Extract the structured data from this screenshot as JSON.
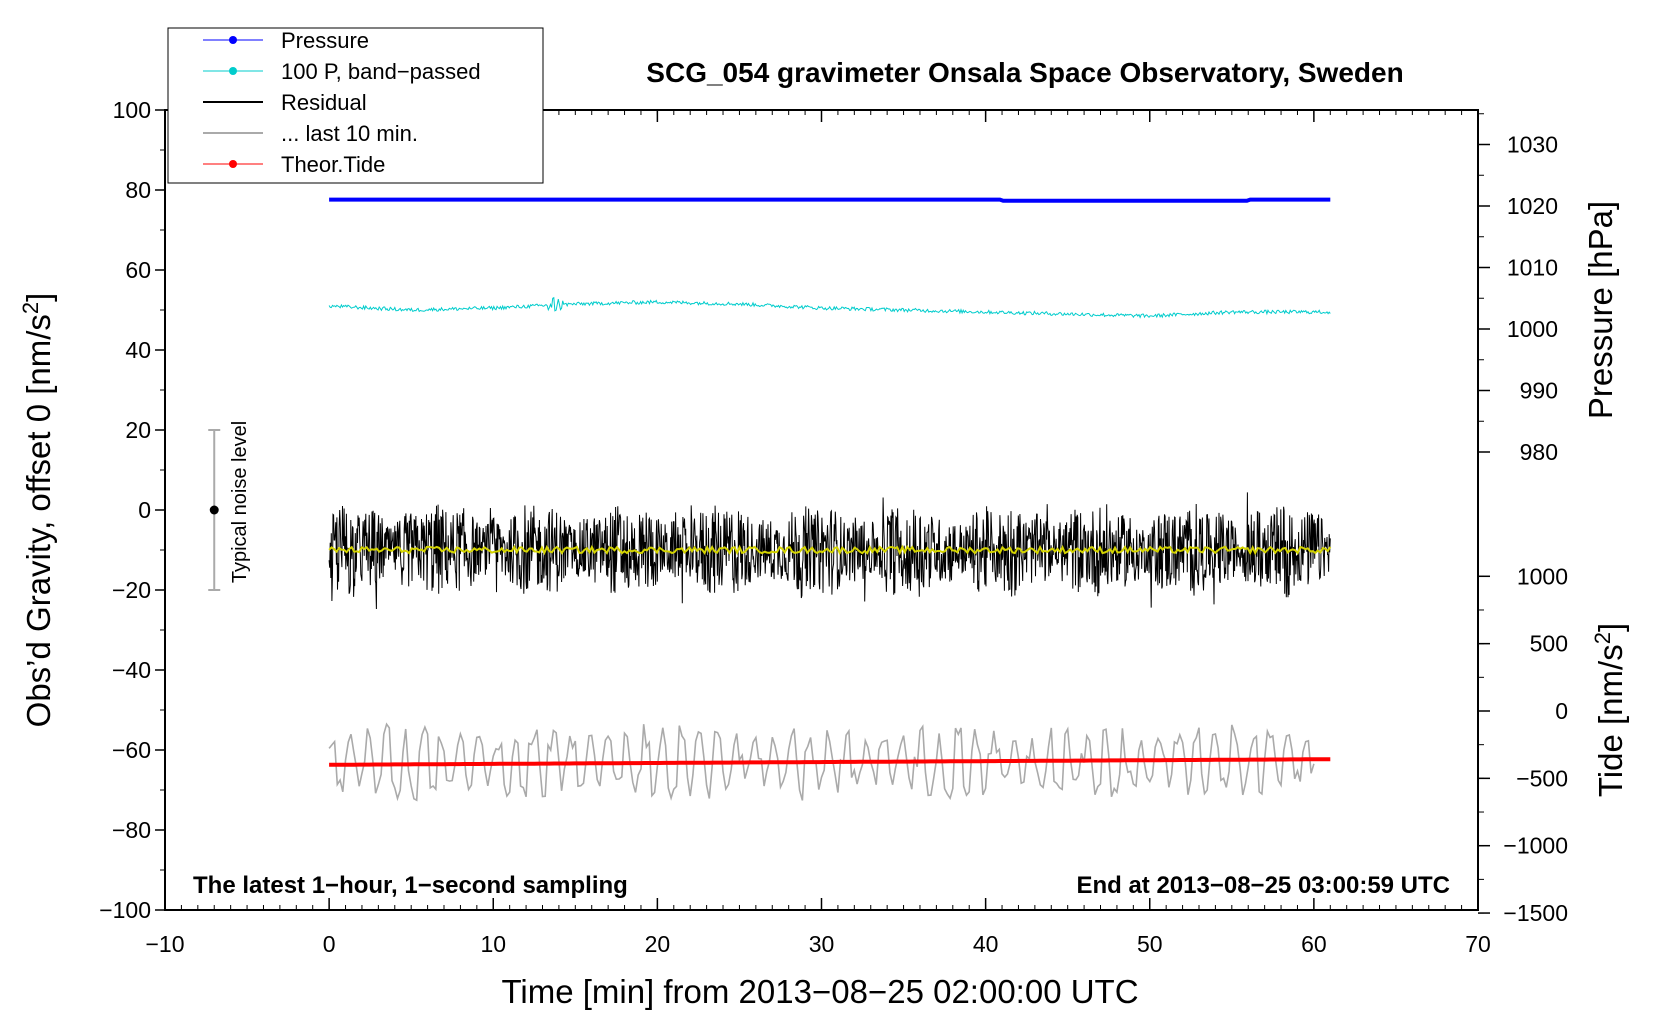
{
  "chart_data": {
    "type": "line",
    "title": "SCG_054 gravimeter Onsala Space Observatory, Sweden",
    "xlabel": "Time [min] from 2013−08−25 02:00:00 UTC",
    "ylabel": "Obs’d Gravity, offset 0 [nm/s2]",
    "ylabel_main": "Obs’d Gravity, offset 0 [nm/s",
    "ylabel_sup": "2",
    "ylabel_end": "]",
    "xlim": [
      -10,
      70
    ],
    "ylim": [
      -100,
      100
    ],
    "x_ticks": [
      -10,
      0,
      10,
      20,
      30,
      40,
      50,
      60,
      70
    ],
    "x_tick_labels": [
      "−10",
      "0",
      "10",
      "20",
      "30",
      "40",
      "50",
      "60",
      "70"
    ],
    "y_ticks": [
      -100,
      -80,
      -60,
      -40,
      -20,
      0,
      20,
      40,
      60,
      80,
      100
    ],
    "y_tick_labels": [
      "−100",
      "−80",
      "−60",
      "−40",
      "−20",
      "0",
      "20",
      "40",
      "60",
      "80",
      "100"
    ],
    "pressure_axis": {
      "label": "Pressure [hPa]",
      "ticks": [
        980,
        990,
        1000,
        1010,
        1020,
        1030
      ],
      "tick_labels": [
        "980",
        "990",
        "1000",
        "1010",
        "1020",
        "1030"
      ]
    },
    "tide_axis": {
      "label": "Tide [nm/s2]",
      "label_main": "Tide [nm/s",
      "label_sup": "2",
      "label_end": "]",
      "ticks": [
        -1500,
        -1000,
        -500,
        0,
        500,
        1000
      ],
      "tick_labels": [
        "−1500",
        "−1000",
        "−500",
        "0",
        "500",
        "1000"
      ]
    },
    "legend_position": "top-left",
    "legend": [
      {
        "label": "Pressure",
        "color": "#0000ff",
        "marker": true
      },
      {
        "label": "100 P, band−passed",
        "color": "#00cccc",
        "marker": true
      },
      {
        "label": "Residual",
        "color": "#000000",
        "marker": false
      },
      {
        "label": "... last 10 min.",
        "color": "#aaaaaa",
        "marker": false
      },
      {
        "label": "Theor.Tide",
        "color": "#ff0000",
        "marker": true
      }
    ],
    "series": [
      {
        "name": "Pressure",
        "color": "#0000ff",
        "x_range": [
          0,
          61
        ],
        "y_start": 77.6,
        "y_end": 77.6,
        "y_dip": 77.3
      },
      {
        "name": "100 P, band-passed",
        "color": "#00cccc",
        "x_range": [
          0,
          61
        ],
        "y_points": [
          [
            0,
            51
          ],
          [
            5,
            50
          ],
          [
            10,
            50.5
          ],
          [
            15,
            51.5
          ],
          [
            20,
            52
          ],
          [
            25,
            51.5
          ],
          [
            30,
            50.5
          ],
          [
            40,
            49.5
          ],
          [
            45,
            49
          ],
          [
            50,
            48.5
          ],
          [
            55,
            49.5
          ],
          [
            60.5,
            49.5
          ]
        ],
        "spike_at": 13.8
      },
      {
        "name": "Residual",
        "color": "#000000",
        "x_range": [
          0,
          61
        ],
        "mean": -10,
        "amplitude": 8,
        "max": 6,
        "min": -26
      },
      {
        "name": "Residual smoothed",
        "color": "#dddd00",
        "x_range": [
          0,
          61
        ],
        "mean": -10
      },
      {
        "name": "... last 10 min.",
        "color": "#aaaaaa",
        "x_range": [
          0,
          60
        ],
        "mean": -63,
        "amplitude": 7,
        "min": -76,
        "max": -49
      },
      {
        "name": "Theor.Tide",
        "color": "#ff0000",
        "x_range": [
          0,
          61
        ],
        "y_start": -63.7,
        "y_end": -62.3
      }
    ],
    "noise_level": {
      "label": "Typical noise level",
      "x": -7,
      "center": 0,
      "low": -20,
      "high": 20
    },
    "annotations": {
      "bottom_left": "The latest 1−hour, 1−second sampling",
      "bottom_right": "End at 2013−08−25 03:00:59 UTC"
    }
  },
  "colors": {
    "pressure": "#0000ff",
    "bandpassed": "#00cccc",
    "residual": "#000000",
    "smoothed": "#d4d400",
    "last10": "#aaaaaa",
    "tide": "#ff0000",
    "noise_bar": "#aaaaaa"
  }
}
